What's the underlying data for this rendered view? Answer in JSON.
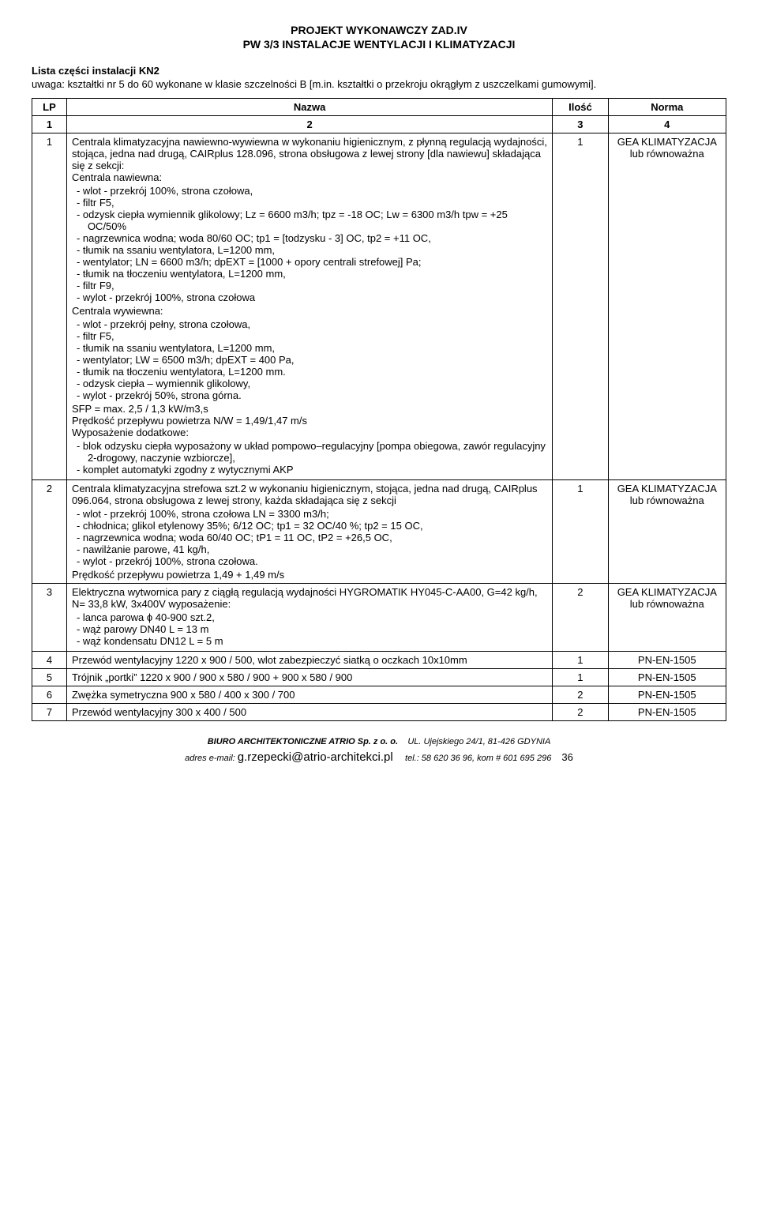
{
  "header": {
    "title": "PROJEKT WYKONAWCZY ZAD.IV",
    "subtitle": "PW 3/3 INSTALACJE  WENTYLACJI I KLIMATYZACJI"
  },
  "section": {
    "title": "Lista części instalacji KN2",
    "note": "uwaga: kształtki nr 5 do 60 wykonane w klasie szczelności B [m.in. kształtki o przekroju okrągłym z uszczelkami gumowymi]."
  },
  "table": {
    "columns": [
      "LP",
      "Nazwa",
      "Ilość",
      "Norma"
    ],
    "subheaders": [
      "1",
      "2",
      "3",
      "4"
    ],
    "rows": [
      {
        "lp": "1",
        "qty": "1",
        "norm": "GEA KLIMATYZACJA lub równoważna",
        "intro1": "Centrala klimatyzacyjna nawiewno-wywiewna w wykonaniu higienicznym, z płynną regulacją wydajności, stojąca, jedna nad drugą, CAIRplus 128.096, strona obsługowa z lewej strony [dla nawiewu] składająca się z sekcji:",
        "intro2": "Centrala nawiewna:",
        "list1": [
          "wlot - przekrój 100%, strona czołowa,",
          "filtr F5,",
          "odzysk ciepła wymiennik glikolowy; Lz  = 6600 m3/h; tpz = -18 OC; Lw  = 6300 m3/h tpw = +25 OC/50%",
          "nagrzewnica wodna; woda 80/60 OC;  tp1 = [todzysku - 3] OC, tp2 = +11 OC,",
          "tłumik na ssaniu wentylatora, L=1200 mm,",
          "wentylator; LN = 6600 m3/h; dpEXT = [1000 + opory centrali strefowej] Pa;",
          "tłumik na tłoczeniu wentylatora, L=1200 mm,",
          "filtr F9,",
          "wylot - przekrój 100%, strona czołowa"
        ],
        "intro3": "Centrala wywiewna:",
        "list2": [
          "wlot - przekrój pełny, strona czołowa,",
          "filtr F5,",
          "tłumik na ssaniu wentylatora, L=1200 mm,",
          "wentylator; LW = 6500 m3/h; dpEXT = 400 Pa,",
          "tłumik na tłoczeniu wentylatora, L=1200 mm.",
          "odzysk ciepła – wymiennik glikolowy,",
          "wylot - przekrój 50%, strona górna."
        ],
        "extra1": "SFP = max. 2,5 / 1,3 kW/m3,s",
        "extra2": "Prędkość przepływu powietrza N/W = 1,49/1,47 m/s",
        "extra3": "Wyposażenie dodatkowe:",
        "list3": [
          "blok odzysku ciepła wyposażony w układ pompowo–regulacyjny [pompa obiegowa, zawór regulacyjny 2-drogowy, naczynie wzbiorcze],",
          "komplet automatyki zgodny z wytycznymi AKP"
        ]
      },
      {
        "lp": "2",
        "qty": "1",
        "norm": "GEA KLIMATYZACJA lub równoważna",
        "intro1": "Centrala klimatyzacyjna strefowa szt.2 w wykonaniu higienicznym, stojąca, jedna nad drugą, CAIRplus 096.064, strona obsługowa z lewej strony, każda składająca się z sekcji",
        "list1": [
          "wlot - przekrój 100%, strona czołowa LN = 3300 m3/h;",
          "chłodnica; glikol etylenowy 35%; 6/12 OC;  tp1 = 32 OC/40 %; tp2 = 15 OC,",
          "nagrzewnica wodna;  woda 60/40 OC;  tP1 = 11 OC, tP2 = +26,5 OC,",
          "nawilżanie parowe, 41 kg/h,",
          "wylot - przekrój 100%, strona czołowa."
        ],
        "extra1": "Prędkość przepływu powietrza 1,49 + 1,49 m/s"
      },
      {
        "lp": "3",
        "qty": "2",
        "norm": "GEA KLIMATYZACJA lub równoważna",
        "intro1": "Elektryczna wytwornica pary z ciągłą regulacją wydajności HYGROMATIK HY045-C-AA00,  G=42 kg/h, N= 33,8 kW, 3x400V wyposażenie:",
        "list1": [
          "lanca parowa ϕ 40-900 szt.2,",
          "wąż parowy DN40 L = 13 m",
          "wąż kondensatu DN12  L = 5 m"
        ]
      },
      {
        "lp": "4",
        "name": "Przewód wentylacyjny 1220 x 900 / 500, wlot zabezpieczyć siatką o oczkach 10x10mm",
        "qty": "1",
        "norm": "PN-EN-1505"
      },
      {
        "lp": "5",
        "name": "Trójnik „portki” 1220 x 900 / 900 x 580 / 900 + 900 x 580 / 900",
        "qty": "1",
        "norm": "PN-EN-1505"
      },
      {
        "lp": "6",
        "name": "Zwężka symetryczna 900 x 580 / 400 x 300 / 700",
        "qty": "2",
        "norm": "PN-EN-1505"
      },
      {
        "lp": "7",
        "name": "Przewód wentylacyjny 300 x 400 / 500",
        "qty": "2",
        "norm": "PN-EN-1505"
      }
    ]
  },
  "footer": {
    "biuro": "BIURO   ARCHITEKTONICZNE   ATRIO Sp.  z o.  o.",
    "address": "UL.  Ujejskiego 24/1,   81-426 GDYNIA",
    "email_label": "adres e-mail:",
    "email": "g.rzepecki@atrio-architekci.pl",
    "tel": "tel.: 58 620 36 96,  kom # 601 695 296",
    "page": "36"
  }
}
